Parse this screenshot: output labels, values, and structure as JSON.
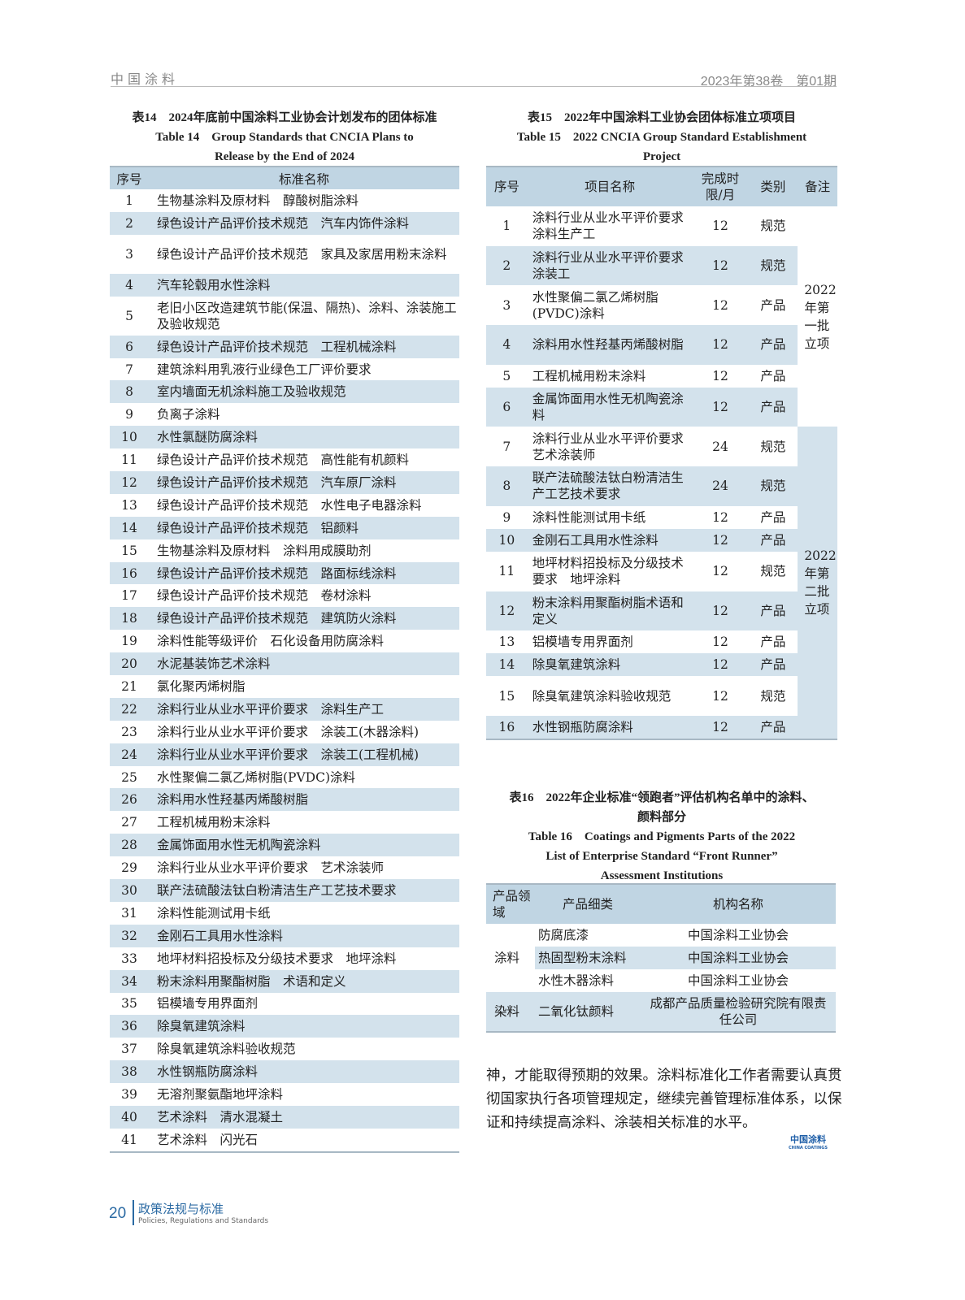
{
  "header": {
    "journal": "中国涂料",
    "issue": "2023年第38卷　第01期"
  },
  "table14": {
    "title_zh": "表14　2024年底前中国涂料工业协会计划发布的团体标准",
    "title_en1": "Table 14　Group Standards that CNCIA Plans to",
    "title_en2": "Release by the End of 2024",
    "columns": [
      "序号",
      "标准名称"
    ],
    "rows": [
      [
        "1",
        "生物基涂料及原材料　醇酸树脂涂料"
      ],
      [
        "2",
        "绿色设计产品评价技术规范　汽车内饰件涂料"
      ],
      [
        "3",
        "绿色设计产品评价技术规范　家具及家居用粉末涂料"
      ],
      [
        "4",
        "汽车轮毂用水性涂料"
      ],
      [
        "5",
        "老旧小区改造建筑节能(保温、隔热)、涂料、涂装施工及验收规范"
      ],
      [
        "6",
        "绿色设计产品评价技术规范　工程机械涂料"
      ],
      [
        "7",
        "建筑涂料用乳液行业绿色工厂评价要求"
      ],
      [
        "8",
        "室内墙面无机涂料施工及验收规范"
      ],
      [
        "9",
        "负离子涂料"
      ],
      [
        "10",
        "水性氯醚防腐涂料"
      ],
      [
        "11",
        "绿色设计产品评价技术规范　高性能有机颜料"
      ],
      [
        "12",
        "绿色设计产品评价技术规范　汽车原厂涂料"
      ],
      [
        "13",
        "绿色设计产品评价技术规范　水性电子电器涂料"
      ],
      [
        "14",
        "绿色设计产品评价技术规范　铝颜料"
      ],
      [
        "15",
        "生物基涂料及原材料　涂料用成膜助剂"
      ],
      [
        "16",
        "绿色设计产品评价技术规范　路面标线涂料"
      ],
      [
        "17",
        "绿色设计产品评价技术规范　卷材涂料"
      ],
      [
        "18",
        "绿色设计产品评价技术规范　建筑防火涂料"
      ],
      [
        "19",
        "涂料性能等级评价　石化设备用防腐涂料"
      ],
      [
        "20",
        "水泥基装饰艺术涂料"
      ],
      [
        "21",
        "氯化聚丙烯树脂"
      ],
      [
        "22",
        "涂料行业从业水平评价要求　涂料生产工"
      ],
      [
        "23",
        "涂料行业从业水平评价要求　涂装工(木器涂料)"
      ],
      [
        "24",
        "涂料行业从业水平评价要求　涂装工(工程机械)"
      ],
      [
        "25",
        "水性聚偏二氯乙烯树脂(PVDC)涂料"
      ],
      [
        "26",
        "涂料用水性羟基丙烯酸树脂"
      ],
      [
        "27",
        "工程机械用粉末涂料"
      ],
      [
        "28",
        "金属饰面用水性无机陶瓷涂料"
      ],
      [
        "29",
        "涂料行业从业水平评价要求　艺术涂装师"
      ],
      [
        "30",
        "联产法硫酸法钛白粉清洁生产工艺技术要求"
      ],
      [
        "31",
        "涂料性能测试用卡纸"
      ],
      [
        "32",
        "金刚石工具用水性涂料"
      ],
      [
        "33",
        "地坪材料招投标及分级技术要求　地坪涂料"
      ],
      [
        "34",
        "粉末涂料用聚酯树脂　术语和定义"
      ],
      [
        "35",
        "铝模墙专用界面剂"
      ],
      [
        "36",
        "除臭氧建筑涂料"
      ],
      [
        "37",
        "除臭氧建筑涂料验收规范"
      ],
      [
        "38",
        "水性钢瓶防腐涂料"
      ],
      [
        "39",
        "无溶剂聚氨酯地坪涂料"
      ],
      [
        "40",
        "艺术涂料　清水混凝土"
      ],
      [
        "41",
        "艺术涂料　闪光石"
      ]
    ]
  },
  "table15": {
    "title_zh": "表15　2022年中国涂料工业协会团体标准立项项目",
    "title_en1": "Table 15　2022 CNCIA Group Standard Establishment",
    "title_en2": "Project",
    "columns": [
      "序号",
      "项目名称",
      "完成时限/月",
      "类别",
      "备注"
    ],
    "remarks": [
      "2022年第一批立项",
      "2022年第二批立项"
    ],
    "rows": [
      [
        "1",
        "涂料行业从业水平评价要求　涂料生产工",
        "12",
        "规范"
      ],
      [
        "2",
        "涂料行业从业水平评价要求　涂装工",
        "12",
        "规范"
      ],
      [
        "3",
        "水性聚偏二氯乙烯树脂(PVDC)涂料",
        "12",
        "产品"
      ],
      [
        "4",
        "涂料用水性羟基丙烯酸树脂",
        "12",
        "产品"
      ],
      [
        "5",
        "工程机械用粉末涂料",
        "12",
        "产品"
      ],
      [
        "6",
        "金属饰面用水性无机陶瓷涂料",
        "12",
        "产品"
      ],
      [
        "7",
        "涂料行业从业水平评价要求　艺术涂装师",
        "24",
        "规范"
      ],
      [
        "8",
        "联产法硫酸法钛白粉清洁生产工艺技术要求",
        "24",
        "规范"
      ],
      [
        "9",
        "涂料性能测试用卡纸",
        "12",
        "产品"
      ],
      [
        "10",
        "金刚石工具用水性涂料",
        "12",
        "产品"
      ],
      [
        "11",
        "地坪材料招投标及分级技术要求　地坪涂料",
        "12",
        "规范"
      ],
      [
        "12",
        "粉末涂料用聚酯树脂术语和定义",
        "12",
        "产品"
      ],
      [
        "13",
        "铝模墙专用界面剂",
        "12",
        "产品"
      ],
      [
        "14",
        "除臭氧建筑涂料",
        "12",
        "产品"
      ],
      [
        "15",
        "除臭氧建筑涂料验收规范",
        "12",
        "规范"
      ],
      [
        "16",
        "水性钢瓶防腐涂料",
        "12",
        "产品"
      ]
    ]
  },
  "table16": {
    "title_zh1": "表16　2022年企业标准“领跑者”评估机构名单中的涂料、",
    "title_zh2": "颜料部分",
    "title_en1": "Table 16　Coatings and Pigments Parts of the 2022",
    "title_en2": "List of Enterprise Standard “Front Runner”",
    "title_en3": "Assessment Institutions",
    "columns": [
      "产品领域",
      "产品细类",
      "机构名称"
    ],
    "group1": "涂料",
    "group2": "染料",
    "rows": [
      [
        "防腐底漆",
        "中国涂料工业协会"
      ],
      [
        "热固型粉末涂料",
        "中国涂料工业协会"
      ],
      [
        "水性木器涂料",
        "中国涂料工业协会"
      ],
      [
        "二氧化钛颜料",
        "成都产品质量检验研究院有限责任公司"
      ]
    ]
  },
  "body_text": "神，才能取得预期的效果。涂料标准化工作者需要认真贯彻国家执行各项管理规定，继续完善管理标准体系，以保证和持续提高涂料、涂装相关标准的水平。",
  "logo": {
    "zh": "中国涂料",
    "en": "CHINA COATINGS"
  },
  "footer": {
    "page": "20",
    "section_zh": "政策法规与标准",
    "section_en": "Policies, Regulations and Standards"
  }
}
